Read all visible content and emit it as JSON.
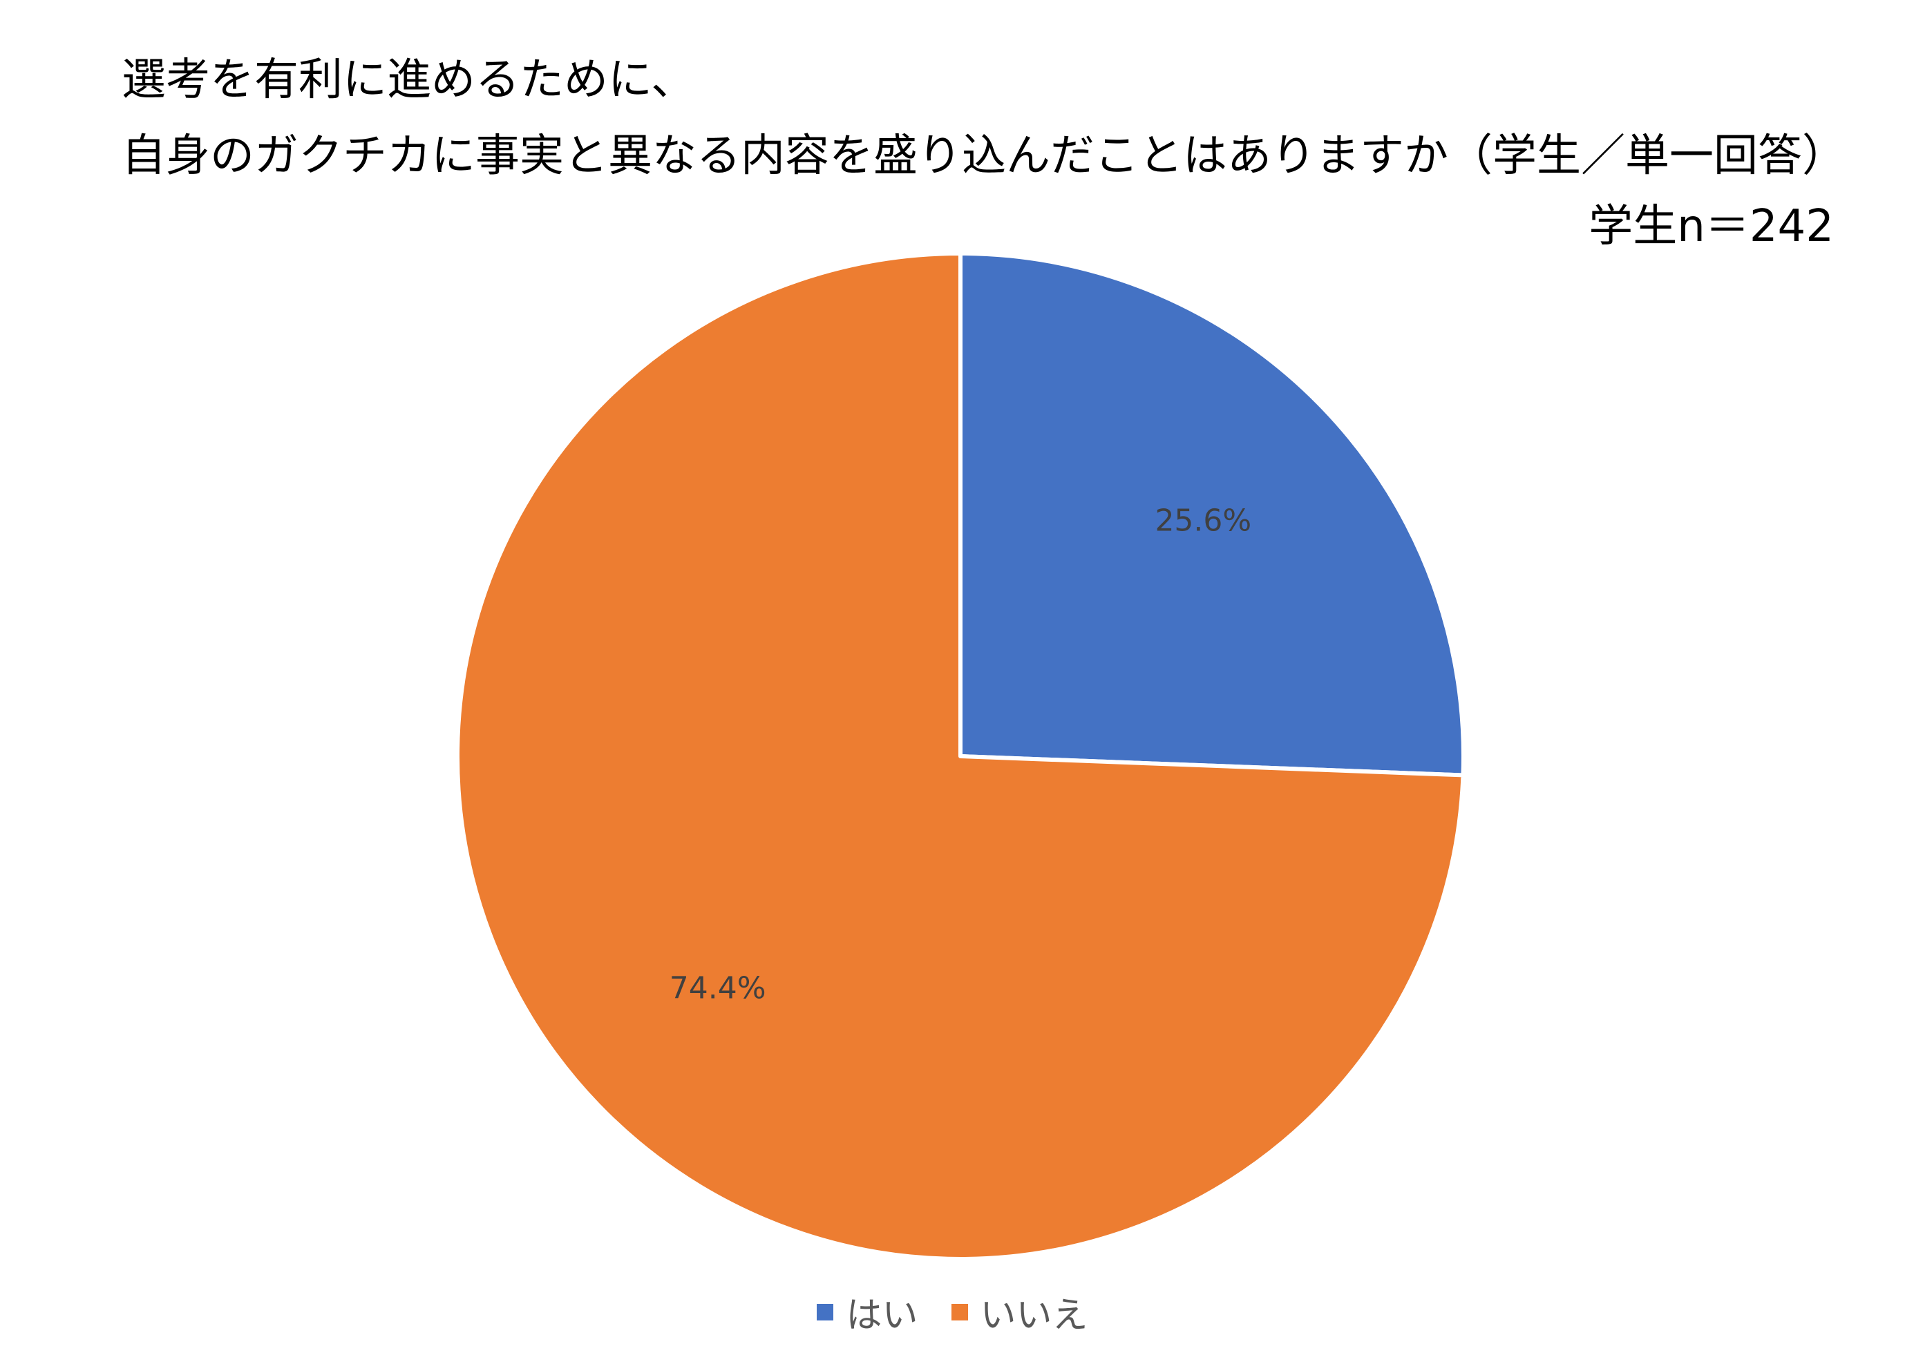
{
  "chart_data": {
    "type": "pie",
    "title_lines": [
      "選考を有利に進めるために、",
      "自身のガクチカに事実と異なる内容を盛り込んだことはありますか（学生／単一回答）"
    ],
    "note": "学生n＝242",
    "slices": [
      {
        "label": "はい",
        "value": 25.6,
        "display": "25.6%",
        "color": "#4472C4"
      },
      {
        "label": "いいえ",
        "value": 74.4,
        "display": "74.4%",
        "color": "#ED7D31"
      }
    ],
    "legend": {
      "position": "bottom"
    }
  }
}
